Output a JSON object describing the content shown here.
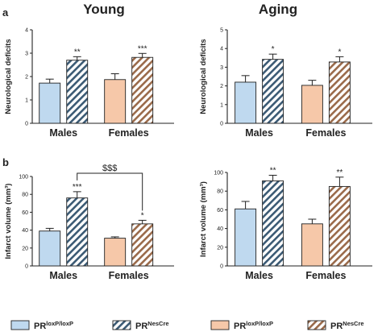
{
  "titles": {
    "left": "Young",
    "right": "Aging"
  },
  "panel_labels": {
    "a": "a",
    "b": "b"
  },
  "colors": {
    "male_fill": "#bfd9ef",
    "female_fill": "#f6c8a9",
    "male_hatch": "#3b5a74",
    "female_hatch": "#9a6a4a",
    "axis": "#222222"
  },
  "legend": [
    {
      "base": "PR",
      "sup": "loxP/loxP",
      "style": "solid-male"
    },
    {
      "base": "PR",
      "sup": "NesCre",
      "style": "hatch-male"
    },
    {
      "base": "PR",
      "sup": "loxP/loxP",
      "style": "solid-female"
    },
    {
      "base": "PR",
      "sup": "NesCre",
      "style": "hatch-female"
    }
  ],
  "chart_data": [
    {
      "type": "bar",
      "panel": "a",
      "group_title": "Young",
      "ylabel": "Neurological deficits",
      "ylim": [
        0,
        4
      ],
      "yticks": [
        0,
        1,
        2,
        3,
        4
      ],
      "categories": [
        "Males",
        "Females"
      ],
      "series": [
        {
          "name": "PRloxP/loxP",
          "values": [
            1.72,
            1.87
          ],
          "errors": [
            0.17,
            0.25
          ]
        },
        {
          "name": "PRNesCre",
          "values": [
            2.7,
            2.82
          ],
          "errors": [
            0.15,
            0.17
          ]
        }
      ],
      "annotations": [
        {
          "category": "Males",
          "series": 1,
          "text": "**"
        },
        {
          "category": "Females",
          "series": 1,
          "text": "***"
        }
      ]
    },
    {
      "type": "bar",
      "panel": "a",
      "group_title": "Aging",
      "ylabel": "Neurological deficits",
      "ylim": [
        0,
        5
      ],
      "yticks": [
        0,
        1,
        2,
        3,
        4,
        5
      ],
      "categories": [
        "Males",
        "Females"
      ],
      "series": [
        {
          "name": "PRloxP/loxP",
          "values": [
            2.2,
            2.03
          ],
          "errors": [
            0.35,
            0.27
          ]
        },
        {
          "name": "PRNesCre",
          "values": [
            3.42,
            3.28
          ],
          "errors": [
            0.28,
            0.28
          ]
        }
      ],
      "annotations": [
        {
          "category": "Males",
          "series": 1,
          "text": "*"
        },
        {
          "category": "Females",
          "series": 1,
          "text": "*"
        }
      ]
    },
    {
      "type": "bar",
      "panel": "b",
      "group_title": "Young",
      "ylabel": "Infarct volume (mm³)",
      "ylim": [
        0,
        100
      ],
      "yticks": [
        0,
        20,
        40,
        60,
        80,
        100
      ],
      "categories": [
        "Males",
        "Females"
      ],
      "series": [
        {
          "name": "PRloxP/loxP",
          "values": [
            39,
            31
          ],
          "errors": [
            3,
            1.5
          ]
        },
        {
          "name": "PRNesCre",
          "values": [
            76,
            47
          ],
          "errors": [
            7,
            4
          ]
        }
      ],
      "annotations": [
        {
          "category": "Males",
          "series": 1,
          "text": "***"
        },
        {
          "category": "Females",
          "series": 1,
          "text": "*"
        }
      ],
      "bracket": {
        "from": "Males",
        "to": "Females",
        "text": "$$$"
      }
    },
    {
      "type": "bar",
      "panel": "b",
      "group_title": "Aging",
      "ylabel": "Infarct volume (mm³)",
      "ylim": [
        0,
        100
      ],
      "yticks": [
        0,
        20,
        40,
        60,
        80,
        100
      ],
      "categories": [
        "Males",
        "Females"
      ],
      "series": [
        {
          "name": "PRloxP/loxP",
          "values": [
            61,
            45
          ],
          "errors": [
            8,
            5
          ]
        },
        {
          "name": "PRNesCre",
          "values": [
            91,
            85
          ],
          "errors": [
            6,
            10
          ]
        }
      ],
      "annotations": [
        {
          "category": "Males",
          "series": 1,
          "text": "**"
        },
        {
          "category": "Females",
          "series": 1,
          "text": "**"
        }
      ]
    }
  ]
}
